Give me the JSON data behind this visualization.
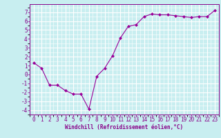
{
  "x": [
    0,
    1,
    2,
    3,
    4,
    5,
    6,
    7,
    8,
    9,
    10,
    11,
    12,
    13,
    14,
    15,
    16,
    17,
    18,
    19,
    20,
    21,
    22,
    23
  ],
  "y": [
    1.3,
    0.7,
    -1.2,
    -1.2,
    -1.8,
    -2.2,
    -2.2,
    -3.9,
    -0.2,
    0.7,
    2.1,
    4.1,
    5.4,
    5.6,
    6.5,
    6.8,
    6.7,
    6.7,
    6.6,
    6.5,
    6.4,
    6.5,
    6.5,
    7.2
  ],
  "line_color": "#990099",
  "marker": "D",
  "marker_size": 2.0,
  "xlabel": "Windchill (Refroidissement éolien,°C)",
  "xlim": [
    -0.5,
    23.5
  ],
  "ylim": [
    -4.5,
    7.9
  ],
  "yticks": [
    -4,
    -3,
    -2,
    -1,
    0,
    1,
    2,
    3,
    4,
    5,
    6,
    7
  ],
  "xticks": [
    0,
    1,
    2,
    3,
    4,
    5,
    6,
    7,
    8,
    9,
    10,
    11,
    12,
    13,
    14,
    15,
    16,
    17,
    18,
    19,
    20,
    21,
    22,
    23
  ],
  "bg_color": "#c8eef0",
  "grid_color": "#ffffff",
  "tick_color": "#880088",
  "label_color": "#880088",
  "font_family": "monospace",
  "tick_fontsize": 5.5,
  "xlabel_fontsize": 5.5,
  "linewidth": 0.8
}
